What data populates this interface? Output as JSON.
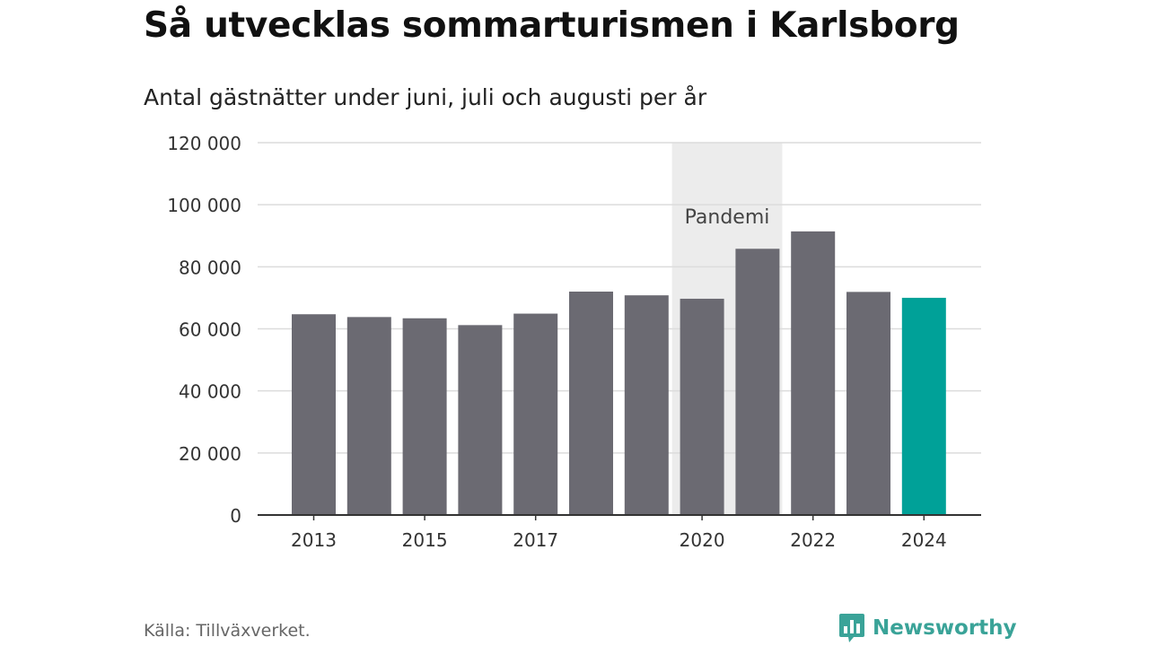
{
  "header": {
    "title": "Så utvecklas sommarturismen i Karlsborg",
    "subtitle": "Antal gästnätter under juni, juli och augusti per år"
  },
  "footer": {
    "source": "Källa: Tillväxverket.",
    "brand": "Newsworthy",
    "brand_color": "#3aa398"
  },
  "chart_data": {
    "type": "bar",
    "title": "Så utvecklas sommarturismen i Karlsborg",
    "subtitle": "Antal gästnätter under juni, juli och augusti per år",
    "xlabel": "",
    "ylabel": "",
    "categories": [
      "2013",
      "2014",
      "2015",
      "2016",
      "2017",
      "2018",
      "2019",
      "2020",
      "2021",
      "2022",
      "2023",
      "2024"
    ],
    "values": [
      64700,
      63800,
      63400,
      61200,
      64900,
      72000,
      70800,
      69700,
      85800,
      91400,
      71900,
      70000
    ],
    "x_tick_labels": [
      "2013",
      "2015",
      "2017",
      "2020",
      "2022",
      "2024"
    ],
    "ylim": [
      0,
      120000
    ],
    "y_ticks": [
      0,
      20000,
      40000,
      60000,
      80000,
      100000,
      120000
    ],
    "y_tick_labels": [
      "0",
      "20 000",
      "40 000",
      "60 000",
      "80 000",
      "100 000",
      "120 000"
    ],
    "grid": true,
    "legend": "none",
    "bar_color": "#6b6a72",
    "highlight": {
      "category": "2024",
      "color": "#00a198"
    },
    "annotation": {
      "label": "Pandemi",
      "from": "2020",
      "to": "2021",
      "color": "#ececec"
    }
  }
}
